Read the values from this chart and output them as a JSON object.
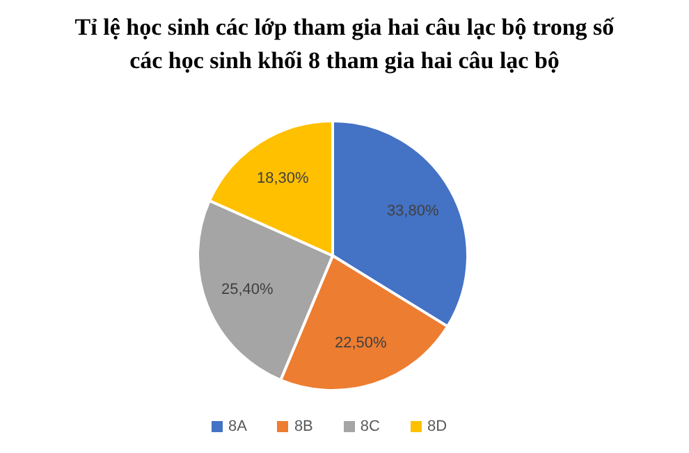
{
  "chart_data": {
    "type": "pie",
    "title": "Tỉ lệ học sinh các lớp tham gia hai câu lạc bộ trong số các học sinh khối 8 tham gia hai câu lạc bộ",
    "categories": [
      "8A",
      "8B",
      "8C",
      "8D"
    ],
    "values": [
      33.8,
      22.5,
      25.4,
      18.3
    ],
    "value_labels": [
      "33,80%",
      "22,50%",
      "25,40%",
      "18,30%"
    ],
    "colors": [
      "#4472c4",
      "#ed7d31",
      "#a5a5a5",
      "#ffc000"
    ],
    "legend": "bottom"
  }
}
